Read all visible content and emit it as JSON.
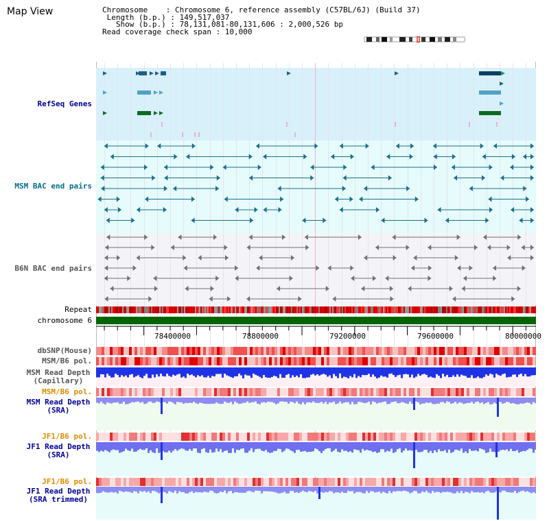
{
  "header": {
    "title": "Map View",
    "info_lines": [
      "Chromosome    : Chromosome 6, reference assembly (C57BL/6J) (Build 37)",
      " Length (b.p.) : 149,517,037",
      "   Show (b.p.) : 78,131,081-80,131,606 : 2,000,526 bp",
      "Read coverage check span : 10,000"
    ]
  },
  "tracks": {
    "refseq": "RefSeq Genes",
    "msm_bac": "MSM BAC end pairs",
    "b6n_bac": "B6N BAC end pairs",
    "repeat": "Repeat",
    "chromosome": "chromosome 6",
    "dbsnp": "dbSNP(Mouse)",
    "msm_b6_pol": "MSM/B6 pol.",
    "msm_depth_cap_1": "MSM Read Depth",
    "msm_depth_cap_2": "(Capillary)",
    "msm_b6_pol2": "MSM/B6 pol.",
    "msm_depth_sra_1": "MSM Read Depth",
    "msm_depth_sra_2": "(SRA)",
    "jf1_b6_pol": "JF1/B6 pol.",
    "jf1_depth_sra_1": "JF1 Read Depth",
    "jf1_depth_sra_2": "(SRA)",
    "jf1_b6_pol2": "JF1/B6 pol.",
    "jf1_depth_trim_1": "JF1 Read Depth",
    "jf1_depth_trim_2": "(SRA trimmed)"
  },
  "axis": {
    "ticks": [
      "78400000",
      "78800000",
      "79200000",
      "79600000",
      "80000000"
    ]
  },
  "colors": {
    "refseq_bg": "#d8f0fa",
    "bac_bg": "#e6fbfb",
    "b6n_bg": "#f4f4f8",
    "msm_gene": "#1b6e8c",
    "b6n_gene": "#707070",
    "chromosome": "#006400",
    "depth_blue": "#1f33e6",
    "depth_light": "#8080f0",
    "label_navy": "#000099",
    "label_orange": "#e08a00",
    "label_teal": "#006e8c",
    "label_grey": "#555555"
  }
}
